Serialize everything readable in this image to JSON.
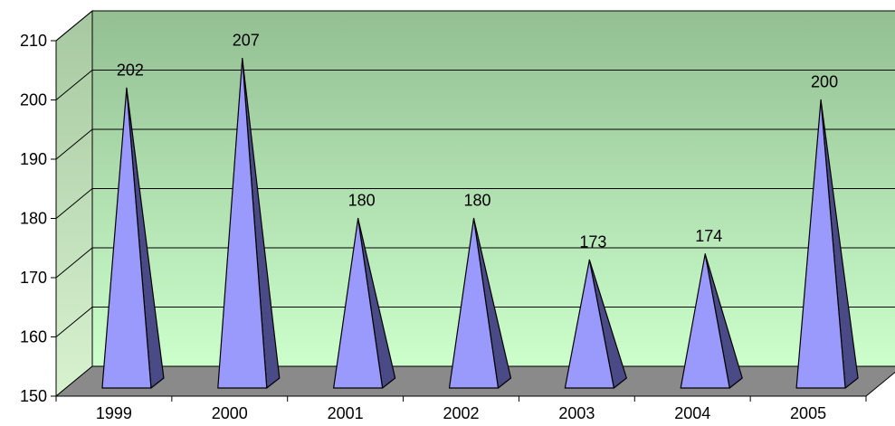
{
  "chart_data": {
    "type": "bar",
    "bar_shape": "pyramid",
    "three_d": true,
    "categories": [
      "1999",
      "2000",
      "2001",
      "2002",
      "2003",
      "2004",
      "2005"
    ],
    "values": [
      202,
      207,
      180,
      180,
      173,
      174,
      200
    ],
    "data_labels": [
      "202",
      "207",
      "180",
      "180",
      "173",
      "174",
      "200"
    ],
    "ylim": [
      150,
      210
    ],
    "yticks": [
      150,
      160,
      170,
      180,
      190,
      200,
      210
    ],
    "ytick_labels": [
      "150",
      "160",
      "170",
      "180",
      "190",
      "200",
      "210"
    ],
    "grid": true,
    "legend": "none",
    "title": "",
    "xlabel": "",
    "ylabel": "",
    "colors": {
      "bar_front": "#9a9afc",
      "bar_side": "#4a4a86",
      "wall_top": "#93bf93",
      "wall_bottom": "#ccffcc",
      "floor": "#8a8a8a",
      "side_wall": "#c6dcb4"
    }
  }
}
